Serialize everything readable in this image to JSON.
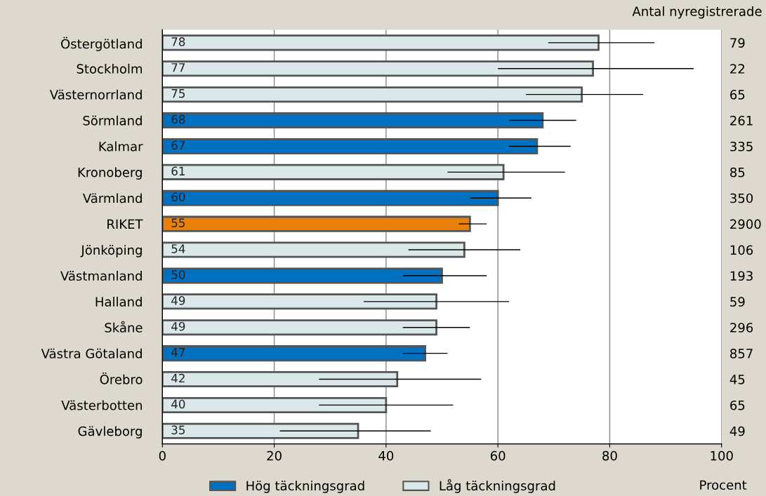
{
  "chart_data": {
    "type": "bar",
    "orientation": "horizontal",
    "categories": [
      "Östergötland",
      "Stockholm",
      "Västernorrland",
      "Sörmland",
      "Kalmar",
      "Kronoberg",
      "Värmland",
      "RIKET",
      "Jönköping",
      "Västmanland",
      "Halland",
      "Skåne",
      "Västra Götaland",
      "Örebro",
      "Västerbotten",
      "Gävleborg"
    ],
    "y2_categories": [
      "79",
      "22",
      "65",
      "261",
      "335",
      "85",
      "350",
      "2900",
      "106",
      "193",
      "59",
      "296",
      "857",
      "45",
      "65",
      "49"
    ],
    "y2label": "Antal nyregistrerade",
    "xlabel": "Procent",
    "series": [
      {
        "name": "Hög täckningsgrad",
        "color": "#0070c0",
        "values": [
          null,
          null,
          null,
          68,
          67,
          null,
          60,
          null,
          null,
          50,
          null,
          null,
          47,
          null,
          null,
          null
        ],
        "errors": [
          null,
          null,
          null,
          [
            62,
            74
          ],
          [
            62,
            73
          ],
          null,
          [
            55,
            66
          ],
          null,
          null,
          [
            43,
            58
          ],
          null,
          null,
          [
            43,
            51
          ],
          null,
          null,
          null
        ]
      },
      {
        "name": "Låg täckningsgrad",
        "color": "#dbe8ea",
        "values": [
          78,
          77,
          75,
          null,
          null,
          61,
          null,
          null,
          54,
          null,
          49,
          49,
          null,
          42,
          40,
          35
        ],
        "errors": [
          [
            69,
            88
          ],
          [
            60,
            95
          ],
          [
            65,
            86
          ],
          null,
          null,
          [
            51,
            72
          ],
          null,
          null,
          [
            44,
            64
          ],
          null,
          [
            36,
            62
          ],
          [
            43,
            55
          ],
          null,
          [
            28,
            57
          ],
          [
            28,
            52
          ],
          [
            21,
            48
          ]
        ]
      },
      {
        "color": "#e8800a",
        "values": [
          null,
          null,
          null,
          null,
          null,
          null,
          null,
          55,
          null,
          null,
          null,
          null,
          null,
          null,
          null,
          null
        ],
        "errors": [
          null,
          null,
          null,
          null,
          null,
          null,
          null,
          [
            53,
            58
          ],
          null,
          null,
          null,
          null,
          null,
          null,
          null,
          null
        ]
      }
    ],
    "xlim": [
      0,
      100
    ],
    "xticks": [
      0,
      20,
      40,
      60,
      80,
      100
    ],
    "grid": "x",
    "legend": "bottom",
    "data_labels": true
  }
}
